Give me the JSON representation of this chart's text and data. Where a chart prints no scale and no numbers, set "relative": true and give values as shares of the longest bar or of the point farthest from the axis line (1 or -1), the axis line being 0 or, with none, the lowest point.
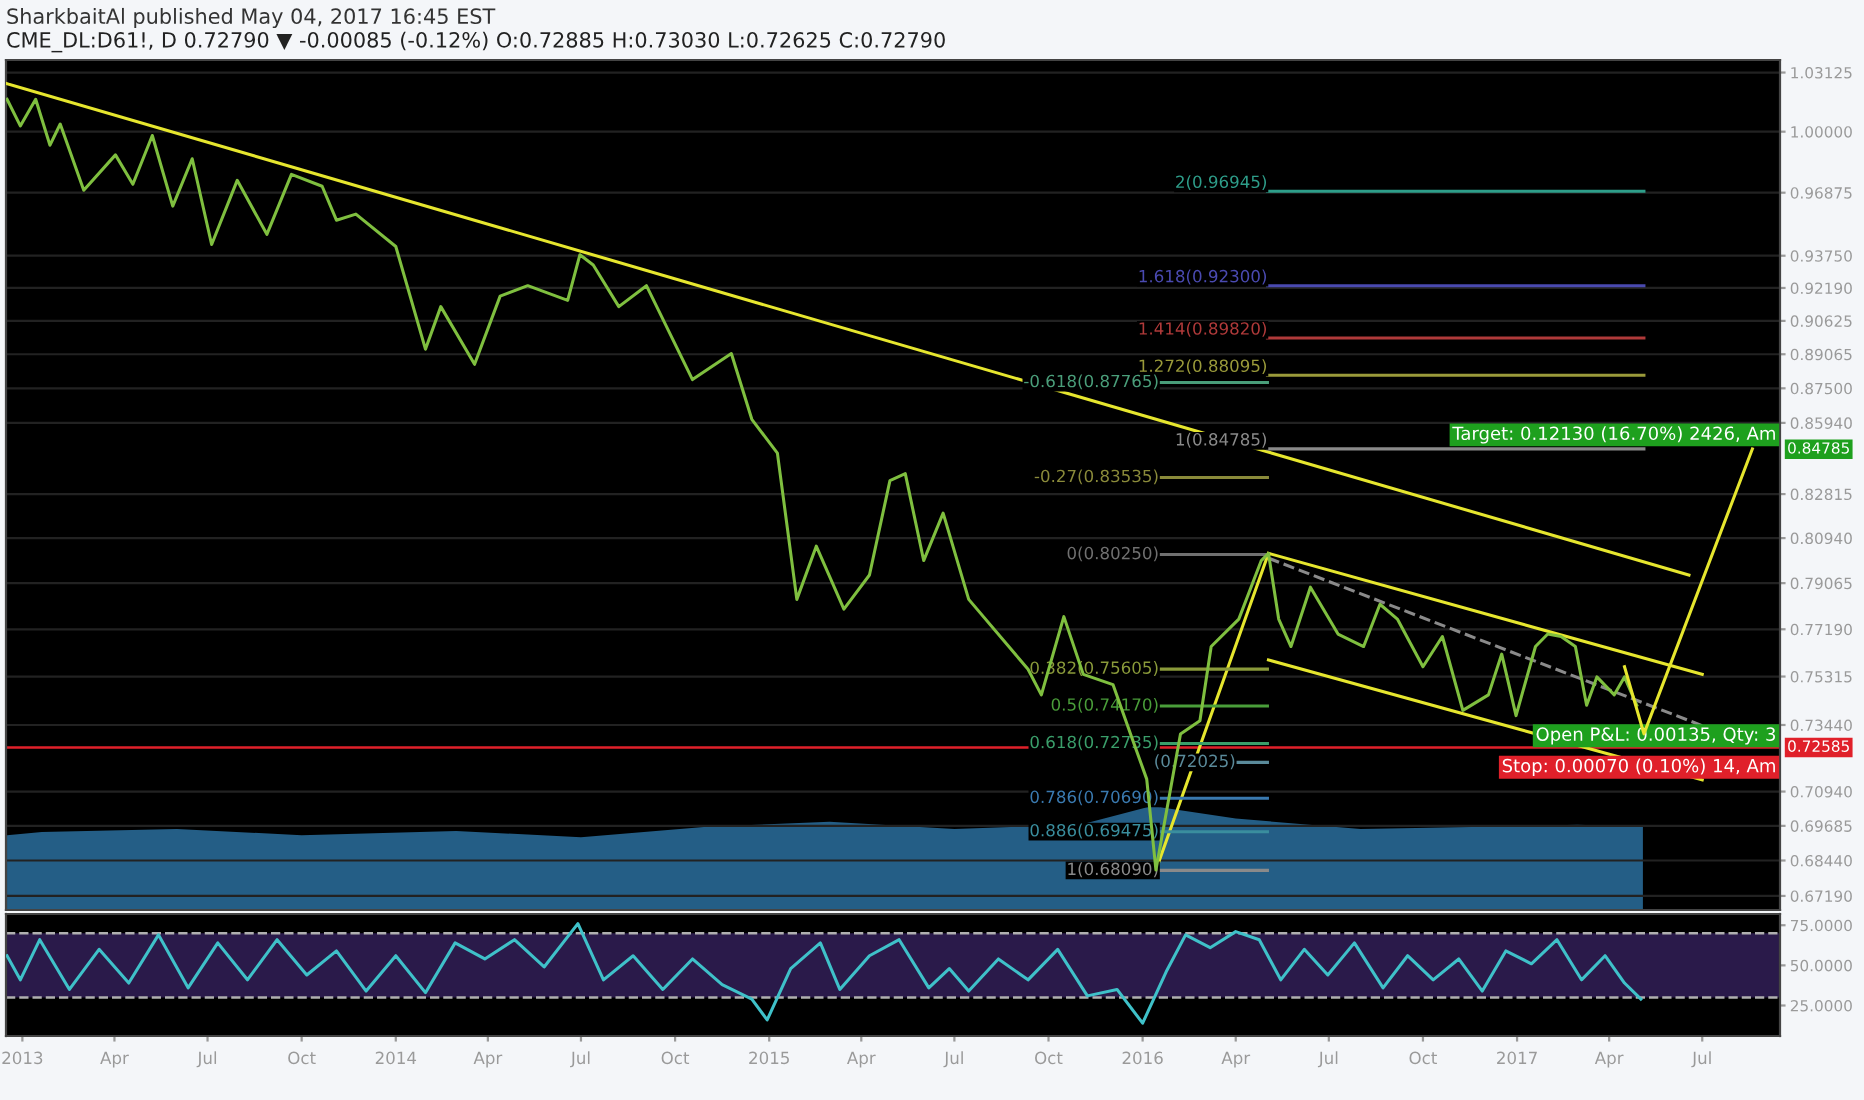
{
  "chart_data": [
    {
      "type": "line",
      "title": "SharkbaitAl published May 04, 2017 16:45 EST",
      "subtitle": "CME_DL:D61!, D 0.72790 ▼ -0.00085 (-0.12%) O:0.72885 H:0.73030 L:0.72625 C:0.72790",
      "log": "y",
      "grid": "y",
      "tick_labels": "y",
      "xlim": [
        "2012-12-16",
        "2017-09-15"
      ],
      "ylim": [
        0.667,
        1.038
      ],
      "yticks": [
        {
          "value": 1.03125,
          "label": "1.03125"
        },
        {
          "value": 1.0,
          "label": "1.00000"
        },
        {
          "value": 0.96875,
          "label": "0.96875"
        },
        {
          "value": 0.9375,
          "label": "0.93750"
        },
        {
          "value": 0.9219,
          "label": "0.92190"
        },
        {
          "value": 0.90625,
          "label": "0.90625"
        },
        {
          "value": 0.89065,
          "label": "0.89065"
        },
        {
          "value": 0.875,
          "label": "0.87500"
        },
        {
          "value": 0.8594,
          "label": "0.85940"
        },
        {
          "value": 0.82815,
          "label": "0.82815"
        },
        {
          "value": 0.8094,
          "label": "0.80940"
        },
        {
          "value": 0.79065,
          "label": "0.79065"
        },
        {
          "value": 0.7719,
          "label": "0.77190"
        },
        {
          "value": 0.75315,
          "label": "0.75315"
        },
        {
          "value": 0.7344,
          "label": "0.73440"
        },
        {
          "value": 0.7094,
          "label": "0.70940"
        },
        {
          "value": 0.69685,
          "label": "0.69685"
        },
        {
          "value": 0.6844,
          "label": "0.68440"
        },
        {
          "value": 0.6719,
          "label": "0.67190"
        }
      ],
      "series": [
        {
          "type": "line",
          "color": "#7fbf3f",
          "x": [
            "2012-12-17",
            "2012-12-30",
            "2013-01-14",
            "2013-01-28",
            "2013-02-07",
            "2013-03-02",
            "2013-04-02",
            "2013-04-19",
            "2013-05-08",
            "2013-05-28",
            "2013-06-16",
            "2013-07-05",
            "2013-07-30",
            "2013-08-28",
            "2013-09-21",
            "2013-10-21",
            "2013-11-04",
            "2013-11-23",
            "2014-01-01",
            "2014-01-30",
            "2014-02-14",
            "2014-03-19",
            "2014-04-13",
            "2014-05-10",
            "2014-06-18",
            "2014-06-30",
            "2014-07-13",
            "2014-08-07",
            "2014-09-03",
            "2014-10-18",
            "2014-11-25",
            "2014-12-15",
            "2015-01-09",
            "2015-01-28",
            "2015-02-16",
            "2015-03-15",
            "2015-04-09",
            "2015-04-29",
            "2015-05-14",
            "2015-06-01",
            "2015-06-20",
            "2015-07-15",
            "2015-09-11",
            "2015-09-24",
            "2015-10-16",
            "2015-11-04",
            "2015-12-03",
            "2015-12-22",
            "2016-01-05",
            "2016-01-14",
            "2016-02-07",
            "2016-02-26",
            "2016-03-08",
            "2016-04-04",
            "2016-04-26",
            "2016-05-03",
            "2016-05-13",
            "2016-05-25",
            "2016-06-13",
            "2016-07-10",
            "2016-08-04",
            "2016-08-20",
            "2016-09-06",
            "2016-10-01",
            "2016-10-20",
            "2016-11-09",
            "2016-12-04",
            "2016-12-17",
            "2016-12-31",
            "2017-01-19",
            "2017-01-31",
            "2017-02-13",
            "2017-02-27",
            "2017-03-10",
            "2017-03-20",
            "2017-04-06",
            "2017-04-16",
            "2017-04-28"
          ],
          "values": [
            1.017,
            1.003,
            1.017,
            0.993,
            1.004,
            0.97,
            0.988,
            0.973,
            0.998,
            0.962,
            0.986,
            0.943,
            0.975,
            0.948,
            0.978,
            0.972,
            0.955,
            0.958,
            0.942,
            0.893,
            0.913,
            0.886,
            0.918,
            0.923,
            0.916,
            0.938,
            0.933,
            0.913,
            0.923,
            0.879,
            0.891,
            0.861,
            0.846,
            0.784,
            0.806,
            0.78,
            0.794,
            0.834,
            0.837,
            0.8,
            0.82,
            0.784,
            0.756,
            0.746,
            0.777,
            0.754,
            0.75,
            0.729,
            0.714,
            0.681,
            0.731,
            0.736,
            0.765,
            0.776,
            0.8,
            0.803,
            0.776,
            0.765,
            0.789,
            0.77,
            0.765,
            0.782,
            0.776,
            0.757,
            0.769,
            0.74,
            0.746,
            0.762,
            0.738,
            0.765,
            0.77,
            0.769,
            0.765,
            0.742,
            0.753,
            0.746,
            0.753,
            0.742
          ]
        },
        {
          "type": "line",
          "color": "#e6e62e",
          "x": [
            "2012-12-17",
            "2017-06-18"
          ],
          "values": [
            1.0253,
            0.794
          ]
        },
        {
          "type": "line",
          "color": "#e6e62e",
          "x": [
            "2016-05-03",
            "2017-07-01"
          ],
          "values": [
            0.803,
            0.754
          ]
        },
        {
          "type": "line",
          "color": "#e6e62e",
          "x": [
            "2016-05-03",
            "2017-07-01"
          ],
          "values": [
            0.7597,
            0.7137
          ]
        },
        {
          "type": "line",
          "color": "#e6e62e",
          "x": [
            "2016-01-14",
            "2016-05-03"
          ],
          "values": [
            0.681,
            0.803
          ]
        },
        {
          "type": "line",
          "color": "#e6e62e",
          "x": [
            "2017-04-16",
            "2017-05-05",
            "2017-08-19"
          ],
          "values": [
            0.757,
            0.731,
            0.84785
          ]
        },
        {
          "type": "line",
          "color": "#8a8a8a",
          "line_style": "dashed",
          "x": [
            "2016-05-03",
            "2017-07-02"
          ],
          "values": [
            0.801,
            0.734
          ]
        },
        {
          "type": "line",
          "name": "2(0.96945)",
          "color": "#2e9e8a",
          "x": [
            "2016-05-02",
            "2017-05-05"
          ],
          "values": [
            0.96945,
            0.96945
          ]
        },
        {
          "type": "line",
          "name": "1.618(0.92300)",
          "color": "#4a4ab0",
          "x": [
            "2016-05-02",
            "2017-05-05"
          ],
          "values": [
            0.923,
            0.923
          ]
        },
        {
          "type": "line",
          "name": "1.414(0.89820)",
          "color": "#b03a3a",
          "x": [
            "2016-05-02",
            "2017-05-05"
          ],
          "values": [
            0.8982,
            0.8982
          ]
        },
        {
          "type": "line",
          "name": "1.272(0.88095)",
          "color": "#9a9a3a",
          "x": [
            "2016-05-02",
            "2017-05-05"
          ],
          "values": [
            0.88095,
            0.88095
          ]
        },
        {
          "type": "line",
          "name": "1(0.84785)",
          "color": "#8a8a8a",
          "x": [
            "2016-05-02",
            "2017-05-05"
          ],
          "values": [
            0.84785,
            0.84785
          ]
        },
        {
          "type": "line",
          "name": "-0.618(0.87765)",
          "color": "#4a9e7a",
          "x": [
            "2016-01-17",
            "2016-05-02"
          ],
          "values": [
            0.87765,
            0.87765
          ]
        },
        {
          "type": "line",
          "name": "-0.27(0.83535)",
          "color": "#8a8a3a",
          "x": [
            "2016-01-17",
            "2016-05-02"
          ],
          "values": [
            0.83535,
            0.83535
          ]
        },
        {
          "type": "line",
          "name": "0(0.80250)",
          "color": "#707070",
          "x": [
            "2016-01-17",
            "2016-05-02"
          ],
          "values": [
            0.8025,
            0.8025
          ]
        },
        {
          "type": "line",
          "name": "0.382(0.75605)",
          "color": "#8a9a3a",
          "x": [
            "2016-01-17",
            "2016-05-02"
          ],
          "values": [
            0.75605,
            0.75605
          ]
        },
        {
          "type": "line",
          "name": "0.5(0.74170)",
          "color": "#4a9e3a",
          "x": [
            "2016-01-17",
            "2016-05-02"
          ],
          "values": [
            0.7417,
            0.7417
          ]
        },
        {
          "type": "line",
          "name": "0.618(0.72735)",
          "color": "#3a9e6a",
          "x": [
            "2016-01-17",
            "2016-05-02"
          ],
          "values": [
            0.72735,
            0.72735
          ]
        },
        {
          "type": "line",
          "name": "(0.72025)",
          "color": "#5a8a9a",
          "x": [
            "2016-04-01",
            "2016-05-02"
          ],
          "values": [
            0.72025,
            0.72025
          ]
        },
        {
          "type": "line",
          "name": "0.786(0.70690)",
          "color": "#3a7ab0",
          "x": [
            "2016-01-17",
            "2016-05-02"
          ],
          "values": [
            0.7069,
            0.7069
          ]
        },
        {
          "type": "line",
          "name": "0.886(0.69475)",
          "color": "#3a8e9e",
          "x": [
            "2016-01-17",
            "2016-05-02"
          ],
          "values": [
            0.69475,
            0.69475
          ]
        },
        {
          "type": "line",
          "name": "1(0.68090)",
          "color": "#8a8a8a",
          "x": [
            "2016-01-17",
            "2016-05-02"
          ],
          "values": [
            0.6809,
            0.6809
          ]
        }
      ],
      "ref_lines": [
        {
          "axis": "y",
          "value": 0.72585,
          "label": "0.72585",
          "color": "#e0202a"
        }
      ],
      "annotations": [
        "Target: 0.12130 (16.70%) 2426, Am",
        "0.84785",
        "Open P&L: 0.00135, Qty: 3",
        "Stop: 0.00070 (0.10%) 14, Am"
      ]
    },
    {
      "type": "area",
      "relative": true,
      "tick_labels": false,
      "xlim": [
        "2012-12-16",
        "2017-09-15"
      ],
      "series": [
        {
          "color": "#2a6e9e",
          "x": [
            "2012-12-17",
            "2013-01-20",
            "2013-06-01",
            "2013-10-01",
            "2014-03-01",
            "2014-07-01",
            "2014-11-01",
            "2015-03-01",
            "2015-07-01",
            "2015-11-01",
            "2016-01-10",
            "2016-04-01",
            "2016-08-01",
            "2016-12-01",
            "2017-03-01",
            "2017-05-04"
          ],
          "values": [
            0.72,
            0.75,
            0.78,
            0.72,
            0.76,
            0.7,
            0.8,
            0.85,
            0.78,
            0.82,
            1.0,
            0.88,
            0.78,
            0.8,
            0.82,
            0.8
          ]
        }
      ]
    },
    {
      "type": "line",
      "tick_labels": "xy",
      "xlim": [
        "2012-12-16",
        "2017-09-15"
      ],
      "ylim": [
        6,
        82
      ],
      "xticks": [
        {
          "value": "2013-01-01",
          "label": "2013"
        },
        {
          "value": "2013-04-01",
          "label": "Apr"
        },
        {
          "value": "2013-07-01",
          "label": "Jul"
        },
        {
          "value": "2013-10-01",
          "label": "Oct"
        },
        {
          "value": "2014-01-01",
          "label": "2014"
        },
        {
          "value": "2014-04-01",
          "label": "Apr"
        },
        {
          "value": "2014-07-01",
          "label": "Jul"
        },
        {
          "value": "2014-10-01",
          "label": "Oct"
        },
        {
          "value": "2015-01-01",
          "label": "2015"
        },
        {
          "value": "2015-04-01",
          "label": "Apr"
        },
        {
          "value": "2015-07-01",
          "label": "Jul"
        },
        {
          "value": "2015-10-01",
          "label": "Oct"
        },
        {
          "value": "2016-01-01",
          "label": "2016"
        },
        {
          "value": "2016-04-01",
          "label": "Apr"
        },
        {
          "value": "2016-07-01",
          "label": "Jul"
        },
        {
          "value": "2016-10-01",
          "label": "Oct"
        },
        {
          "value": "2017-01-01",
          "label": "2017"
        },
        {
          "value": "2017-04-01",
          "label": "Apr"
        },
        {
          "value": "2017-07-01",
          "label": "Jul"
        }
      ],
      "yticks": [
        {
          "value": 75,
          "label": "75.0000"
        },
        {
          "value": 50,
          "label": "50.0000"
        },
        {
          "value": 25,
          "label": "25.0000"
        }
      ],
      "series": [
        {
          "color": "#3fc1c9",
          "x": [
            "2012-12-17",
            "2012-12-30",
            "2013-01-18",
            "2013-02-16",
            "2013-03-17",
            "2013-04-15",
            "2013-05-14",
            "2013-06-12",
            "2013-07-11",
            "2013-08-09",
            "2013-09-07",
            "2013-10-06",
            "2013-11-04",
            "2013-12-03",
            "2014-01-01",
            "2014-01-30",
            "2014-02-28",
            "2014-03-29",
            "2014-04-27",
            "2014-05-26",
            "2014-06-28",
            "2014-07-23",
            "2014-08-21",
            "2014-09-19",
            "2014-10-18",
            "2014-11-16",
            "2014-12-15",
            "2014-12-30",
            "2015-01-22",
            "2015-02-20",
            "2015-03-11",
            "2015-04-09",
            "2015-05-08",
            "2015-06-06",
            "2015-06-26",
            "2015-07-15",
            "2015-08-13",
            "2015-09-11",
            "2015-10-10",
            "2015-11-08",
            "2015-12-07",
            "2016-01-01",
            "2016-01-24",
            "2016-02-12",
            "2016-03-07",
            "2016-04-01",
            "2016-04-24",
            "2016-05-15",
            "2016-06-07",
            "2016-06-30",
            "2016-07-26",
            "2016-08-23",
            "2016-09-16",
            "2016-10-11",
            "2016-11-05",
            "2016-11-28",
            "2016-12-21",
            "2017-01-15",
            "2017-02-09",
            "2017-03-05",
            "2017-03-28",
            "2017-04-16",
            "2017-05-02"
          ],
          "values": [
            56,
            41,
            66,
            35,
            60,
            39,
            69,
            36,
            64,
            41,
            66,
            44,
            59,
            34,
            56,
            33,
            64,
            54,
            66,
            49,
            76,
            41,
            56,
            35,
            54,
            38,
            29,
            16,
            48,
            64,
            35,
            56,
            66,
            36,
            48,
            34,
            54,
            41,
            60,
            31,
            35,
            14,
            46,
            69,
            61,
            71,
            66,
            41,
            60,
            44,
            64,
            36,
            56,
            41,
            54,
            34,
            59,
            51,
            66,
            41,
            56,
            39,
            29
          ]
        }
      ],
      "ref_lines": [
        {
          "axis": "y",
          "value": 70,
          "color": "#b0b0b0",
          "line_style": "dashed"
        },
        {
          "axis": "y",
          "value": 30,
          "color": "#b0b0b0",
          "line_style": "dashed"
        }
      ],
      "bands": [
        {
          "axis": "y",
          "from": 30,
          "to": 70,
          "color": "#2a1a4a"
        }
      ]
    }
  ]
}
